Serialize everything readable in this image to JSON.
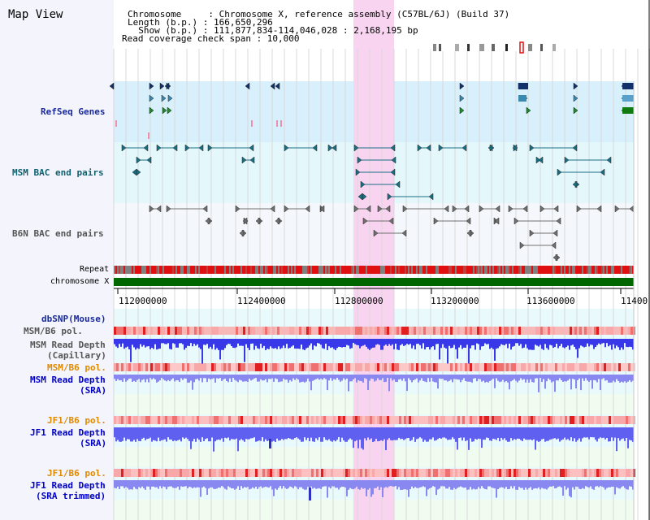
{
  "header": {
    "title": "Map View",
    "info_lines": [
      "Chromosome     : Chromosome X, reference assembly (C57BL/6J) (Build 37)",
      "Length (b.p.) : 166,650,296",
      "  Show (b.p.) : 111,877,834-114,046,028 : 2,168,195 bp",
      "Read coverage check span : 10,000"
    ]
  },
  "tracks": {
    "refseq": "RefSeq Genes",
    "msm_bac": "MSM BAC end pairs",
    "b6n_bac": "B6N BAC end pairs",
    "repeat": "Repeat",
    "chromosome": "chromosome X",
    "dbsnp": "dbSNP(Mouse)",
    "msm_b6_pol": "MSM/B6 pol.",
    "msm_depth_cap_1": "MSM Read Depth",
    "msm_depth_cap_2": "(Capillary)",
    "msm_b6_pol2": "MSM/B6 pol.",
    "msm_depth_sra_1": "MSM Read Depth",
    "msm_depth_sra_2": "(SRA)",
    "jf1_b6_pol": "JF1/B6 pol.",
    "jf1_depth_sra_1": "JF1 Read Depth",
    "jf1_depth_sra_2": "(SRA)",
    "jf1_b6_pol2": "JF1/B6 pol.",
    "jf1_depth_trim_1": "JF1 Read Depth",
    "jf1_depth_trim_2": "(SRA trimmed)"
  },
  "axis": {
    "ticks": [
      "112000000",
      "112400000",
      "112800000",
      "113200000",
      "113600000",
      "11400"
    ]
  },
  "colors": {
    "highlight": "#f8d4f0",
    "refseq_bg": "#d8f0fc",
    "msm_bg": "#e4f8fc",
    "b6n_bg": "#f4f8fc",
    "chromosome": "#006600",
    "repeat_red": "#e01010",
    "repeat_gray": "#808080",
    "depth_blue": "#4848f0",
    "depth_light": "#8888f0"
  }
}
